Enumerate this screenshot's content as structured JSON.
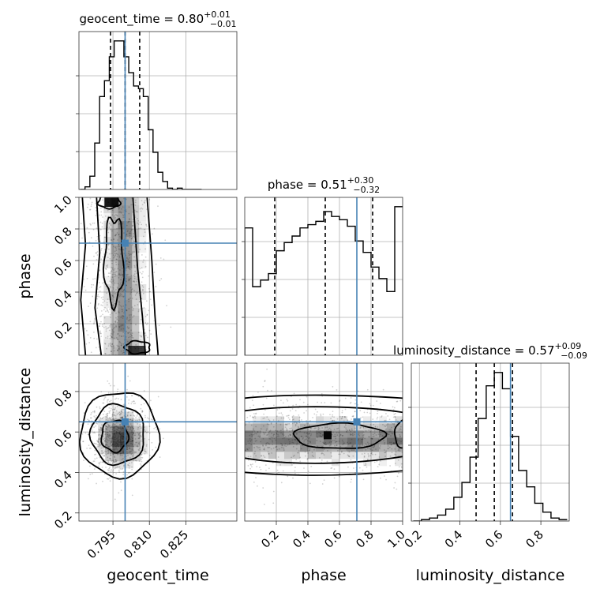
{
  "chart_data": {
    "type": "corner",
    "parameters": [
      "geocent_time",
      "phase",
      "luminosity_distance"
    ],
    "truths": {
      "geocent_time": 0.8,
      "phase": 0.71,
      "luminosity_distance": 0.65
    },
    "colors": {
      "truth": "#4682b4",
      "hist": "#000000",
      "density": "#000000",
      "grid": "#b0b0b0"
    },
    "grid": true,
    "marginals": [
      {
        "parameter": "geocent_time",
        "title_main": "geocent_time = 0.80",
        "title_plus": "+0.01",
        "title_minus": "−0.01",
        "median": 0.8,
        "lower": 0.794,
        "upper": 0.806,
        "xlim": [
          0.781,
          0.846
        ],
        "bins": [
          0.7825,
          0.7845,
          0.7865,
          0.7885,
          0.7905,
          0.7925,
          0.7945,
          0.7965,
          0.7985,
          0.8005,
          0.8025,
          0.8045,
          0.8065,
          0.8085,
          0.8105,
          0.8125,
          0.8145,
          0.8165,
          0.8185,
          0.8205,
          0.8225,
          0.8245,
          0.8265,
          0.8285,
          0.8305
        ],
        "counts": [
          0,
          2,
          10,
          35,
          70,
          82,
          100,
          112,
          112,
          100,
          88,
          78,
          76,
          70,
          45,
          28,
          13,
          6,
          1,
          0,
          1,
          0,
          0,
          0,
          0
        ]
      },
      {
        "parameter": "phase",
        "title_main": "phase = 0.51",
        "title_plus": "+0.30",
        "title_minus": "−0.32",
        "median": 0.51,
        "lower": 0.19,
        "upper": 0.81,
        "xlim": [
          0.0,
          1.0
        ],
        "bins": [
          0.025,
          0.075,
          0.125,
          0.175,
          0.225,
          0.275,
          0.325,
          0.375,
          0.425,
          0.475,
          0.525,
          0.575,
          0.625,
          0.675,
          0.725,
          0.775,
          0.825,
          0.875,
          0.925,
          0.975
        ],
        "counts": [
          78,
          42,
          46,
          50,
          64,
          69,
          73,
          78,
          80,
          82,
          88,
          85,
          83,
          79,
          70,
          63,
          54,
          47,
          39,
          91
        ]
      },
      {
        "parameter": "luminosity_distance",
        "title_main": "luminosity_distance = 0.57",
        "title_plus": "+0.09",
        "title_minus": "−0.09",
        "median": 0.57,
        "lower": 0.48,
        "upper": 0.66,
        "xlim": [
          0.16,
          0.94
        ],
        "bins": [
          0.19,
          0.23,
          0.27,
          0.31,
          0.35,
          0.39,
          0.43,
          0.47,
          0.51,
          0.55,
          0.59,
          0.63,
          0.67,
          0.71,
          0.75,
          0.79,
          0.83,
          0.87,
          0.91
        ],
        "counts": [
          0,
          1,
          2,
          4,
          8,
          16,
          26,
          43,
          69,
          91,
          100,
          89,
          57,
          34,
          23,
          12,
          6,
          2,
          1
        ]
      }
    ],
    "joints": [
      {
        "x": "geocent_time",
        "y": "phase",
        "xlim": [
          0.781,
          0.846
        ],
        "ylim": [
          0.0,
          1.0
        ],
        "peak": [
          0.797,
          0.98
        ],
        "density_description": "broad vertical band centered near geocent_time 0.80 spanning all phase values"
      },
      {
        "x": "geocent_time",
        "y": "luminosity_distance",
        "xlim": [
          0.781,
          0.846
        ],
        "ylim": [
          0.16,
          0.94
        ],
        "peak": [
          0.796,
          0.57
        ],
        "density_description": "compact blob centered near (0.797, 0.58)"
      },
      {
        "x": "phase",
        "y": "luminosity_distance",
        "xlim": [
          0.0,
          1.0
        ],
        "ylim": [
          0.16,
          0.94
        ],
        "peak": [
          0.52,
          0.57
        ],
        "density_description": "horizontal band near luminosity_distance 0.58 across all phases"
      }
    ],
    "axes": {
      "bottom_row_ticks": {
        "geocent_time": [
          "0.795",
          "0.810",
          "0.825"
        ],
        "phase": [
          "0.2",
          "0.4",
          "0.6",
          "0.8",
          "1.0"
        ],
        "luminosity_distance": [
          "0.2",
          "0.4",
          "0.6",
          "0.8"
        ]
      },
      "left_column_ticks": {
        "phase": [
          "0.2",
          "0.4",
          "0.6",
          "0.8",
          "1.0"
        ],
        "luminosity_distance": [
          "0.2",
          "0.4",
          "0.6",
          "0.8"
        ]
      },
      "tick_values": {
        "geocent_time": [
          0.795,
          0.81,
          0.825
        ],
        "phase": [
          0.2,
          0.4,
          0.6,
          0.8,
          1.0
        ],
        "luminosity_distance": [
          0.2,
          0.4,
          0.6,
          0.8
        ]
      },
      "labels": {
        "geocent_time": "geocent_time",
        "phase": "phase",
        "luminosity_distance": "luminosity_distance"
      }
    }
  }
}
